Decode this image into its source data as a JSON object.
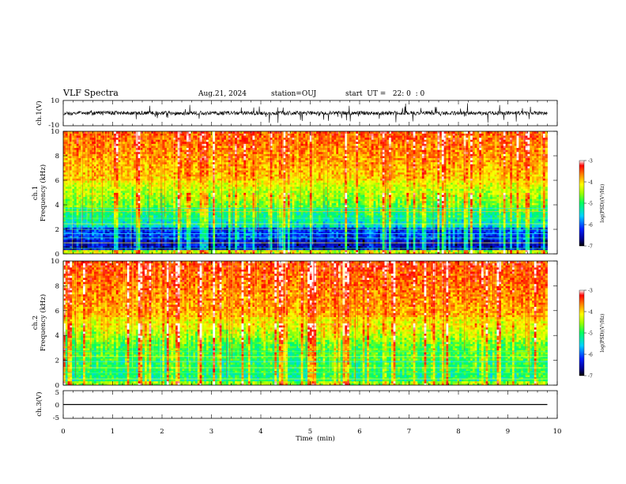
{
  "header": {
    "title": "VLF Spectra",
    "date": "Aug.21, 2024",
    "station": "station=OUJ",
    "start": "start  UT =   22: 0  : 0"
  },
  "chart_data": [
    {
      "type": "line",
      "panel": "ch1-waveform",
      "ylabel": "ch.1(V)",
      "ylim": [
        -10,
        10
      ],
      "yticks": [
        "10",
        "-10"
      ],
      "xlim": [
        0,
        10
      ],
      "trace": "noisy waveform centered near 0 V, mostly within ±3 V with frequent spikes reaching ±8 V, ends at about 9.8 min"
    },
    {
      "type": "heatmap",
      "panel": "ch1-spectrogram",
      "ylabel": "ch.1\nFrequency  (kHz)",
      "ylabel_lines": [
        "ch.1",
        "Frequency  (kHz)"
      ],
      "ylim": [
        0,
        10
      ],
      "yticks": [
        "0",
        "2",
        "4",
        "6",
        "8",
        "10"
      ],
      "xlim": [
        0,
        10
      ],
      "colorbar": {
        "label": "log(PSD)(V²/Hz)",
        "range": [
          -7,
          -3
        ],
        "ticks": [
          "-3",
          "-4",
          "-5",
          "-6",
          "-7"
        ]
      },
      "features": "high power (red, ~-3.5) above ~6 kHz, green/yellow 3–6 kHz, low power (blue, ~-6.5) band around 0.5–2 kHz with horizontal narrowband lines, vertical broadband streaks throughout"
    },
    {
      "type": "heatmap",
      "panel": "ch2-spectrogram",
      "ylabel": "ch.2\nFrequency  (kHz)",
      "ylabel_lines": [
        "ch.2",
        "Frequency  (kHz)"
      ],
      "ylim": [
        0,
        10
      ],
      "yticks": [
        "0",
        "2",
        "4",
        "6",
        "8",
        "10"
      ],
      "xlim": [
        0,
        10
      ],
      "colorbar": {
        "label": "log(PSD)(V²/Hz)",
        "range": [
          -7,
          -3
        ],
        "ticks": [
          "-3",
          "-4",
          "-5",
          "-6",
          "-7"
        ]
      },
      "features": "high power (red) above ~5 kHz, green/cyan 1–4 kHz with horizontal narrowband lines, vertical broadband streaks throughout"
    },
    {
      "type": "line",
      "panel": "ch3-waveform",
      "ylabel": "ch.3(V)",
      "ylim": [
        -5,
        5
      ],
      "yticks": [
        "5",
        "0",
        "-5"
      ],
      "xlim": [
        0,
        10
      ],
      "xlabel": "Time  (min)",
      "xticks": [
        "0",
        "1",
        "2",
        "3",
        "4",
        "5",
        "6",
        "7",
        "8",
        "9",
        "10"
      ],
      "x": [
        0,
        9.8
      ],
      "y": [
        0,
        0
      ]
    }
  ]
}
